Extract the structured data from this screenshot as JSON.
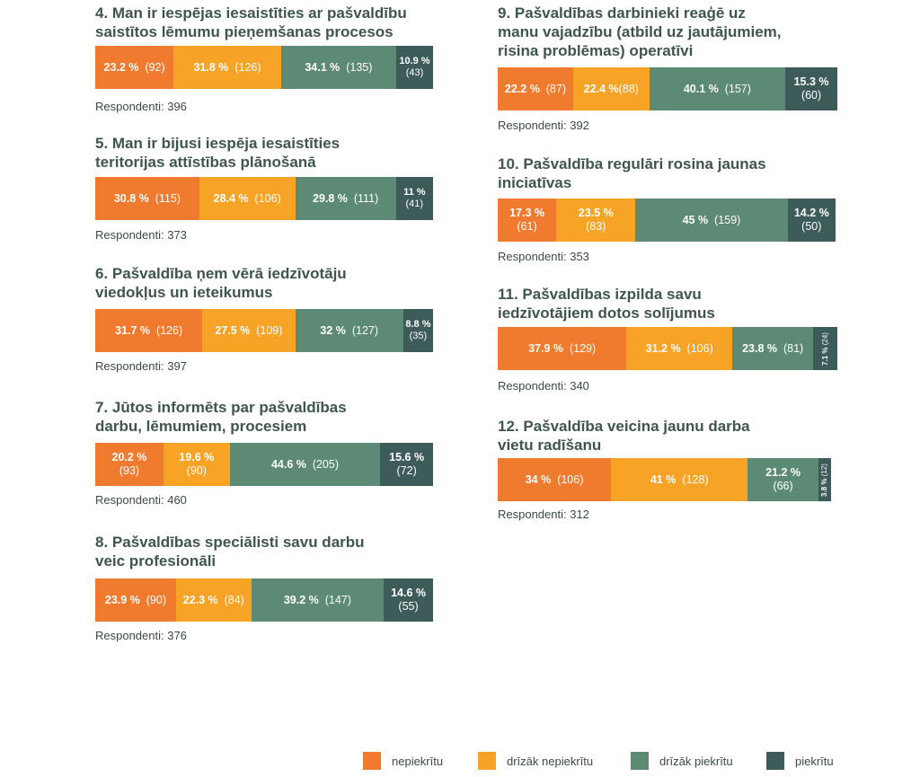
{
  "colors": {
    "nepiekritu": "#f07a2e",
    "drizak_nepiekritu": "#f6a326",
    "drizak_piekritu": "#5c8a74",
    "piekritu": "#3d5b58"
  },
  "legend": {
    "items": [
      {
        "label": "nepiekrītu",
        "color": "#f07a2e"
      },
      {
        "label": "drīzāk nepiekrītu",
        "color": "#f6a326"
      },
      {
        "label": "drīzāk piekrītu",
        "color": "#5c8a74"
      },
      {
        "label": "piekrītu",
        "color": "#3d5b58"
      }
    ]
  },
  "chart_data": {
    "type": "bar",
    "stacked": true,
    "orientation": "horizontal",
    "series_names": [
      "nepiekrītu",
      "drīzāk nepiekrītu",
      "drīzāk piekrītu",
      "piekrītu"
    ],
    "questions": [
      {
        "title": "4. Man ir iespējas iesaistīties ar pašvaldību\nsaistītos lēmumu pieņemšanas procesos",
        "respondents": "Respondenti: 396",
        "segments": [
          {
            "pct": "23.2 %",
            "count": "(92)",
            "value": 23.2
          },
          {
            "pct": "31.8 %",
            "count": "(126)",
            "value": 31.8
          },
          {
            "pct": "34.1 %",
            "count": "(135)",
            "value": 34.1
          },
          {
            "pct": "10.9 %",
            "count": "(43)",
            "value": 10.9,
            "style": "small"
          }
        ]
      },
      {
        "title": "5. Man ir bijusi iespēja iesaistīties\nteritorijas attīstības plānošanā",
        "respondents": "Respondenti: 373",
        "segments": [
          {
            "pct": "30.8 %",
            "count": "(115)",
            "value": 30.8
          },
          {
            "pct": "28.4 %",
            "count": "(106)",
            "value": 28.4
          },
          {
            "pct": "29.8 %",
            "count": "(111)",
            "value": 29.8
          },
          {
            "pct": "11 %",
            "count": "(41)",
            "value": 11.0,
            "style": "small"
          }
        ]
      },
      {
        "title": "6. Pašvaldība ņem vērā iedzīvotāju\nviedokļus un ieteikumus",
        "respondents": "Respondenti: 397",
        "segments": [
          {
            "pct": "31.7 %",
            "count": "(126)",
            "value": 31.7
          },
          {
            "pct": "27.5 %",
            "count": "(109)",
            "value": 27.5
          },
          {
            "pct": "32 %",
            "count": "(127)",
            "value": 32.0
          },
          {
            "pct": "8.8 %",
            "count": "(35)",
            "value": 8.8,
            "style": "small"
          }
        ]
      },
      {
        "title": "7. Jūtos informēts par pašvaldības\ndarbu, lēmumiem, procesiem",
        "respondents": "Respondenti: 460",
        "segments": [
          {
            "pct": "20.2 %",
            "count": "(93)",
            "value": 20.2,
            "style": "stack"
          },
          {
            "pct": "19.6 %",
            "count": "(90)",
            "value": 19.6,
            "style": "stack"
          },
          {
            "pct": "44.6 %",
            "count": "(205)",
            "value": 44.6
          },
          {
            "pct": "15.6 %",
            "count": "(72)",
            "value": 15.6,
            "style": "stack"
          }
        ]
      },
      {
        "title": "8. Pašvaldības speciālisti savu darbu\nveic profesionāli",
        "respondents": "Respondenti: 376",
        "segments": [
          {
            "pct": "23.9 %",
            "count": "(90)",
            "value": 23.9
          },
          {
            "pct": "22.3 %",
            "count": "(84)",
            "value": 22.3
          },
          {
            "pct": "39.2 %",
            "count": "(147)",
            "value": 39.2
          },
          {
            "pct": "14.6 %",
            "count": "(55)",
            "value": 14.6,
            "style": "stack"
          }
        ]
      },
      {
        "title": "9. Pašvaldības darbinieki reaģē uz\nmanu vajadzību (atbild uz jautājumiem,\nrisina problēmas) operatīvi",
        "respondents": "Respondenti: 392",
        "segments": [
          {
            "pct": "22.2 %",
            "count": "(87)",
            "value": 22.2
          },
          {
            "pct": "22.4 %",
            "count": "(88)",
            "value": 22.4,
            "style": "tight"
          },
          {
            "pct": "40.1 %",
            "count": "(157)",
            "value": 40.1
          },
          {
            "pct": "15.3 %",
            "count": "(60)",
            "value": 15.3,
            "style": "stack"
          }
        ]
      },
      {
        "title": "10. Pašvaldība regulāri rosina jaunas\niniciatīvas",
        "respondents": "Respondenti: 353",
        "segments": [
          {
            "pct": "17.3 %",
            "count": "(61)",
            "value": 17.3,
            "style": "stack"
          },
          {
            "pct": "23.5 %",
            "count": "(83)",
            "value": 23.5,
            "style": "stack"
          },
          {
            "pct": "45 %",
            "count": "(159)",
            "value": 45.0
          },
          {
            "pct": "14.2 %",
            "count": "(50)",
            "value": 14.2,
            "style": "stack"
          }
        ]
      },
      {
        "title": "11. Pašvaldības izpilda savu\niedzīvotājiem dotos solījumus",
        "respondents": "Respondenti: 340",
        "segments": [
          {
            "pct": "37.9 %",
            "count": "(129)",
            "value": 37.9
          },
          {
            "pct": "31.2 %",
            "count": "(106)",
            "value": 31.2
          },
          {
            "pct": "23.8 %",
            "count": "(81)",
            "value": 23.8
          },
          {
            "pct": "7.1 %",
            "count": "(24)",
            "value": 7.1,
            "style": "rot"
          }
        ]
      },
      {
        "title": "12.  Pašvaldība veicina jaunu darba\nvietu radīšanu",
        "respondents": "Respondenti: 312",
        "segments": [
          {
            "pct": "34 %",
            "count": "(106)",
            "value": 34.0
          },
          {
            "pct": "41 %",
            "count": "(128)",
            "value": 41.0
          },
          {
            "pct": "21.2 %",
            "count": "(66)",
            "value": 21.2,
            "style": "stack"
          },
          {
            "pct": "3.8 %",
            "count": "(12)",
            "value": 3.8,
            "style": "rot"
          }
        ]
      }
    ]
  }
}
